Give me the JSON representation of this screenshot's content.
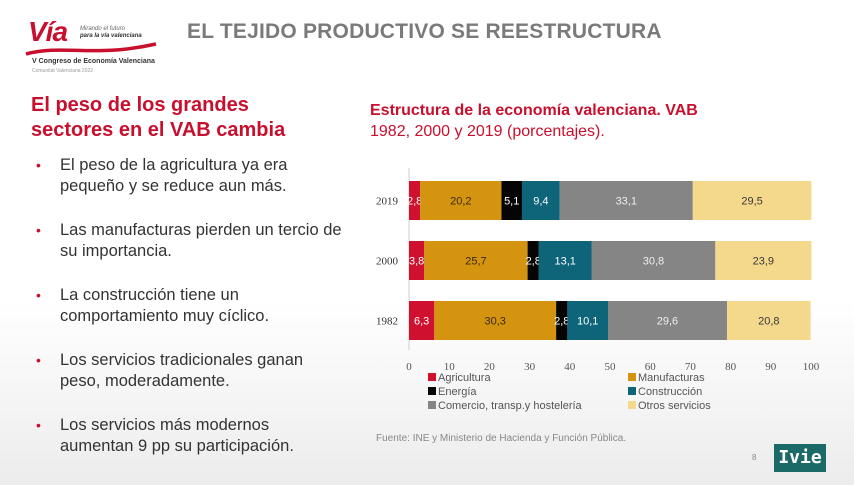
{
  "logo": {
    "brand": "Vía",
    "tagline_1": "Mirando el futuro",
    "tagline_2": "para la vía valenciana",
    "congress": "V Congreso de Economía Valenciana",
    "subtitle": "Comunitat Valenciana 2022"
  },
  "slide_title": "EL TEJIDO PRODUCTIVO SE REESTRUCTURA",
  "left_panel": {
    "heading": "El peso de los grandes sectores en el VAB cambia",
    "bullets": [
      "El peso de la agricultura ya era pequeño y se reduce aun más.",
      "Las manufacturas pierden un tercio de su importancia.",
      "La construcción tiene un comportamiento muy cíclico.",
      "Los servicios tradicionales ganan peso, moderadamente.",
      "Los servicios más modernos aumentan 9 pp su participación."
    ]
  },
  "chart_data": {
    "type": "bar",
    "orientation": "horizontal",
    "stacked": true,
    "title": "Estructura de la economía valenciana. VAB",
    "subtitle": "1982, 2000 y 2019 (porcentajes).",
    "categories": [
      "2019",
      "2000",
      "1982"
    ],
    "xlim": [
      0,
      100
    ],
    "xticks": [
      0,
      10,
      20,
      30,
      40,
      50,
      60,
      70,
      80,
      90,
      100
    ],
    "legend_position": "bottom",
    "series": [
      {
        "name": "Agricultura",
        "color": "#d0102f",
        "label_color": "#ffffff",
        "values": [
          2.8,
          3.8,
          6.3
        ]
      },
      {
        "name": "Manufacturas",
        "color": "#d4940f",
        "label_color": "#3a2a00",
        "values": [
          20.2,
          25.7,
          30.3
        ]
      },
      {
        "name": "Energía",
        "color": "#050505",
        "label_color": "#ffffff",
        "values": [
          5.1,
          2.8,
          2.8
        ]
      },
      {
        "name": "Construcción",
        "color": "#0e6478",
        "label_color": "#ffffff",
        "values": [
          9.4,
          13.1,
          10.1
        ]
      },
      {
        "name": "Comercio, transp.y hostelería",
        "color": "#858585",
        "label_color": "#eeeeee",
        "values": [
          33.1,
          30.8,
          29.6
        ]
      },
      {
        "name": "Otros servicios",
        "color": "#f4d88c",
        "label_color": "#3a3a3a",
        "values": [
          29.5,
          23.9,
          20.8
        ]
      }
    ],
    "labels": [
      [
        "2,8",
        "20,2",
        "5,1",
        "9,4",
        "33,1",
        "29,5"
      ],
      [
        "3,8",
        "25,7",
        "2,8",
        "13,1",
        "30,8",
        "23,9"
      ],
      [
        "6,3",
        "30,3",
        "2,8",
        "10,1",
        "29,6",
        "20,8"
      ]
    ]
  },
  "source": "Fuente: INE y Ministerio de Hacienda y Función Pública.",
  "page_number": "8",
  "footer_logo": "Ivie"
}
